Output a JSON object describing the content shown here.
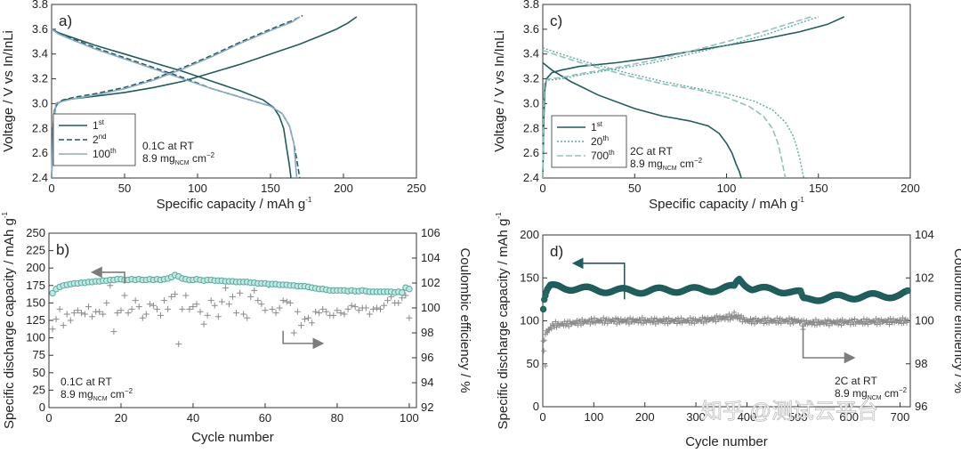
{
  "colors": {
    "dark": "#1f5c5c",
    "teal": "#5aa9a0",
    "mid": "#4b7fae",
    "light": "#8aa9c6",
    "grey": "#7c7c7c",
    "cyan": "#6fc9c0"
  },
  "chart_data": [
    {
      "id": "a",
      "type": "line",
      "panel_label": "a)",
      "xlabel": "Specific  capacity / mAh g",
      "xlabel_sup": "-1",
      "ylabel": "Voltage / V vs In/InLi",
      "xlim": [
        0,
        250
      ],
      "ylim": [
        2.4,
        3.8
      ],
      "xticks": [
        0,
        50,
        100,
        150,
        200,
        250
      ],
      "yticks": [
        2.4,
        2.6,
        2.8,
        3.0,
        3.2,
        3.4,
        3.6,
        3.8
      ],
      "legend": [
        "1",
        "2",
        "100"
      ],
      "legend_sup": [
        "st",
        "nd",
        "th"
      ],
      "annotation": [
        "0.1C at RT",
        "8.9 mg",
        "NCM",
        " cm",
        "−2"
      ],
      "series": [
        {
          "name": "1st charge",
          "style": "dark-solid",
          "x": [
            0,
            0.5,
            1,
            2,
            4,
            8,
            15,
            30,
            50,
            70,
            90,
            110,
            130,
            150,
            170,
            185,
            195,
            203,
            209
          ],
          "y": [
            2.4,
            2.6,
            2.8,
            2.95,
            3.0,
            3.03,
            3.04,
            3.06,
            3.09,
            3.13,
            3.18,
            3.25,
            3.32,
            3.4,
            3.48,
            3.55,
            3.6,
            3.65,
            3.7
          ]
        },
        {
          "name": "1st discharge",
          "style": "dark-solid",
          "x": [
            0,
            5,
            15,
            30,
            50,
            70,
            90,
            110,
            130,
            145,
            152,
            156,
            159,
            161,
            163,
            164
          ],
          "y": [
            3.6,
            3.57,
            3.53,
            3.47,
            3.4,
            3.33,
            3.26,
            3.18,
            3.1,
            3.03,
            2.97,
            2.9,
            2.8,
            2.65,
            2.5,
            2.4
          ]
        },
        {
          "name": "2nd charge",
          "style": "dark-dash",
          "x": [
            0,
            1,
            3,
            8,
            15,
            30,
            50,
            70,
            90,
            110,
            130,
            150,
            165,
            172
          ],
          "y": [
            2.4,
            2.8,
            3.0,
            3.03,
            3.05,
            3.08,
            3.13,
            3.2,
            3.29,
            3.39,
            3.5,
            3.6,
            3.67,
            3.71
          ]
        },
        {
          "name": "2nd discharge",
          "style": "dark-dash",
          "x": [
            0,
            5,
            15,
            30,
            50,
            70,
            90,
            110,
            130,
            150,
            158,
            163,
            166,
            168,
            170
          ],
          "y": [
            3.6,
            3.57,
            3.52,
            3.45,
            3.37,
            3.29,
            3.21,
            3.12,
            3.05,
            2.98,
            2.92,
            2.82,
            2.68,
            2.55,
            2.4
          ]
        },
        {
          "name": "100th charge",
          "style": "light-solid",
          "x": [
            0,
            1,
            3,
            8,
            15,
            30,
            50,
            70,
            90,
            110,
            130,
            150,
            165,
            170
          ],
          "y": [
            2.4,
            2.8,
            3.0,
            3.02,
            3.04,
            3.07,
            3.12,
            3.19,
            3.28,
            3.38,
            3.49,
            3.59,
            3.66,
            3.7
          ]
        },
        {
          "name": "100th discharge",
          "style": "light-solid",
          "x": [
            0,
            5,
            15,
            30,
            50,
            70,
            90,
            110,
            130,
            150,
            158,
            163,
            166,
            168
          ],
          "y": [
            3.6,
            3.56,
            3.51,
            3.44,
            3.36,
            3.28,
            3.2,
            3.12,
            3.05,
            2.98,
            2.92,
            2.82,
            2.68,
            2.4
          ]
        }
      ]
    },
    {
      "id": "b",
      "type": "scatter",
      "panel_label": "b)",
      "xlabel": "Cycle number",
      "ylabel": "Specific discharge capacity / mAh g",
      "ylabel_sup": "-1",
      "y2label": "Coulombic efficiency / %",
      "xlim": [
        0,
        102
      ],
      "ylim": [
        0,
        250
      ],
      "y2lim": [
        92,
        106
      ],
      "xticks": [
        0,
        20,
        40,
        60,
        80,
        100
      ],
      "yticks": [
        0,
        25,
        50,
        75,
        100,
        125,
        150,
        175,
        200,
        225,
        250
      ],
      "y2ticks": [
        92,
        94,
        96,
        98,
        100,
        102,
        104,
        106
      ],
      "annotation": [
        "0.1C at RT",
        "8.9 mg",
        "NCM",
        " cm",
        "−2"
      ],
      "capacity": {
        "x": [
          1,
          2,
          3,
          4,
          5,
          6,
          7,
          8,
          9,
          10,
          11,
          12,
          13,
          14,
          15,
          16,
          17,
          18,
          19,
          20,
          21,
          22,
          23,
          24,
          25,
          26,
          27,
          28,
          29,
          30,
          31,
          32,
          33,
          34,
          35,
          36,
          37,
          38,
          39,
          40,
          41,
          42,
          43,
          44,
          45,
          46,
          47,
          48,
          49,
          50,
          51,
          52,
          53,
          54,
          55,
          56,
          57,
          58,
          59,
          60,
          61,
          62,
          63,
          64,
          65,
          66,
          67,
          68,
          69,
          70,
          71,
          72,
          73,
          74,
          75,
          76,
          77,
          78,
          79,
          80,
          81,
          82,
          83,
          84,
          85,
          86,
          87,
          88,
          89,
          90,
          91,
          92,
          93,
          94,
          95,
          96,
          97,
          98,
          99,
          100
        ],
        "y": [
          164,
          170,
          173,
          175,
          176,
          177,
          178,
          178,
          179,
          179,
          180,
          180,
          181,
          181,
          182,
          182,
          183,
          183,
          184,
          184,
          183,
          183,
          184,
          183,
          184,
          183,
          183,
          184,
          183,
          184,
          183,
          184,
          185,
          187,
          190,
          188,
          185,
          184,
          183,
          183,
          184,
          183,
          182,
          183,
          183,
          182,
          182,
          182,
          181,
          181,
          181,
          180,
          180,
          180,
          180,
          179,
          179,
          178,
          178,
          178,
          177,
          177,
          177,
          176,
          176,
          176,
          175,
          175,
          174,
          174,
          174,
          173,
          172,
          171,
          170,
          170,
          169,
          168,
          168,
          168,
          168,
          168,
          167,
          168,
          167,
          167,
          168,
          167,
          166,
          166,
          166,
          166,
          166,
          166,
          166,
          165,
          166,
          165,
          172,
          170
        ]
      },
      "efficiency": {
        "x": [
          1,
          2,
          3,
          4,
          5,
          6,
          7,
          8,
          9,
          10,
          11,
          12,
          13,
          14,
          15,
          16,
          17,
          18,
          19,
          20,
          21,
          22,
          23,
          24,
          25,
          26,
          27,
          28,
          29,
          30,
          31,
          32,
          33,
          34,
          35,
          36,
          37,
          38,
          39,
          40,
          41,
          42,
          43,
          44,
          45,
          46,
          47,
          48,
          49,
          50,
          51,
          52,
          53,
          54,
          55,
          56,
          57,
          58,
          59,
          60,
          61,
          62,
          63,
          64,
          65,
          66,
          67,
          68,
          69,
          70,
          71,
          72,
          73,
          74,
          75,
          76,
          77,
          78,
          79,
          80,
          81,
          82,
          83,
          84,
          85,
          86,
          87,
          88,
          89,
          90,
          91,
          92,
          93,
          94,
          95,
          96,
          97,
          98,
          99,
          100
        ],
        "y": [
          98.3,
          99.1,
          99.9,
          98.6,
          99.5,
          99.0,
          99.6,
          99.8,
          99.6,
          99.5,
          100.1,
          99.3,
          99.7,
          99.7,
          99.5,
          100.4,
          101.8,
          98.1,
          99.6,
          99.8,
          101.0,
          99.6,
          99.9,
          100.6,
          100.1,
          99.2,
          99.5,
          100.3,
          100.2,
          99.9,
          99.4,
          100.6,
          99.9,
          100.9,
          101.1,
          97.1,
          99.9,
          101.0,
          99.9,
          100.1,
          100.3,
          99.7,
          98.7,
          99.4,
          100.6,
          100.2,
          99.3,
          100.5,
          101.6,
          100.3,
          100.9,
          99.6,
          101.2,
          99.5,
          99.2,
          100.9,
          101.4,
          100.6,
          100.3,
          99.8,
          101.8,
          99.9,
          99.6,
          100.0,
          100.6,
          100.5,
          100.4,
          98.0,
          99.7,
          98.6,
          99.1,
          99.2,
          98.8,
          99.7,
          99.6,
          99.9,
          99.7,
          99.4,
          99.4,
          99.8,
          99.6,
          99.5,
          99.9,
          100.2,
          100.1,
          99.8,
          100.0,
          100.0,
          99.5,
          99.9,
          100.0,
          99.9,
          100.2,
          100.6,
          100.9,
          100.4,
          100.4,
          100.8,
          101.0,
          99.2
        ]
      }
    },
    {
      "id": "c",
      "type": "line",
      "panel_label": "c)",
      "xlabel": "Specific  capacity / mAh g",
      "xlabel_sup": "-1",
      "ylabel": "Voltage / V vs In/InLi",
      "xlim": [
        0,
        200
      ],
      "ylim": [
        2.4,
        3.8
      ],
      "xticks": [
        0,
        50,
        100,
        150,
        200
      ],
      "yticks": [
        2.4,
        2.6,
        2.8,
        3.0,
        3.2,
        3.4,
        3.6,
        3.8
      ],
      "legend": [
        "1",
        "20",
        "700"
      ],
      "legend_sup": [
        "st",
        "th",
        "th"
      ],
      "annotation": [
        "2C at RT",
        "8.9 mg",
        "NCM",
        " cm",
        "−2"
      ],
      "series": [
        {
          "name": "1st charge",
          "style": "dark-solid",
          "x": [
            0,
            0.5,
            1,
            2,
            5,
            10,
            20,
            40,
            60,
            80,
            100,
            120,
            140,
            155,
            164
          ],
          "y": [
            2.4,
            2.8,
            3.1,
            3.2,
            3.25,
            3.27,
            3.3,
            3.33,
            3.37,
            3.42,
            3.47,
            3.52,
            3.58,
            3.64,
            3.7
          ]
        },
        {
          "name": "1st discharge",
          "style": "dark-solid",
          "x": [
            0,
            5,
            15,
            30,
            50,
            65,
            80,
            90,
            96,
            100,
            103,
            105,
            107,
            108
          ],
          "y": [
            3.33,
            3.27,
            3.18,
            3.07,
            2.96,
            2.9,
            2.86,
            2.82,
            2.76,
            2.68,
            2.6,
            2.52,
            2.45,
            2.4
          ]
        },
        {
          "name": "20th charge",
          "style": "teal-dot",
          "x": [
            0,
            0.5,
            1,
            3,
            10,
            20,
            40,
            60,
            80,
            100,
            120,
            140,
            150
          ],
          "y": [
            2.4,
            3.0,
            3.17,
            3.19,
            3.2,
            3.23,
            3.28,
            3.33,
            3.4,
            3.47,
            3.55,
            3.65,
            3.7
          ]
        },
        {
          "name": "20th discharge",
          "style": "teal-dot",
          "x": [
            0,
            10,
            25,
            45,
            65,
            85,
            100,
            115,
            125,
            132,
            136,
            138,
            140,
            141,
            142
          ],
          "y": [
            3.45,
            3.4,
            3.33,
            3.25,
            3.18,
            3.12,
            3.08,
            3.02,
            2.95,
            2.85,
            2.75,
            2.66,
            2.55,
            2.47,
            2.4
          ]
        },
        {
          "name": "700th charge",
          "style": "light-dash",
          "x": [
            0,
            0.5,
            1,
            3,
            10,
            20,
            40,
            60,
            80,
            100,
            120,
            135,
            146
          ],
          "y": [
            2.4,
            3.0,
            3.18,
            3.2,
            3.21,
            3.24,
            3.29,
            3.35,
            3.42,
            3.5,
            3.58,
            3.65,
            3.7
          ]
        },
        {
          "name": "700th discharge",
          "style": "light-dash",
          "x": [
            0,
            10,
            25,
            45,
            65,
            85,
            100,
            112,
            120,
            125,
            128,
            130,
            132
          ],
          "y": [
            3.43,
            3.38,
            3.31,
            3.23,
            3.16,
            3.11,
            3.05,
            2.98,
            2.9,
            2.8,
            2.68,
            2.55,
            2.4
          ]
        }
      ]
    },
    {
      "id": "d",
      "type": "scatter",
      "panel_label": "d)",
      "xlabel": "Cycle number",
      "ylabel": "Specific discharge capacity / mAh g",
      "ylabel_sup": "-1",
      "y2label": "Coulombic efficiency / %",
      "xlim": [
        0,
        720
      ],
      "ylim": [
        0,
        200
      ],
      "y2lim": [
        96,
        104
      ],
      "xticks": [
        0,
        100,
        200,
        300,
        400,
        500,
        600,
        700
      ],
      "yticks": [
        0,
        50,
        100,
        150,
        200
      ],
      "y2ticks": [
        96,
        98,
        100,
        102,
        104
      ],
      "annotation": [
        "2C at RT",
        "8.9 mg",
        "NCM",
        " cm",
        "−2"
      ],
      "capacity": {
        "segments": [
          [
            0,
            108
          ],
          [
            3,
            124
          ],
          [
            8,
            134
          ],
          [
            15,
            139
          ],
          [
            30,
            140
          ],
          [
            60,
            138
          ],
          [
            100,
            136
          ],
          [
            150,
            135
          ],
          [
            200,
            135
          ],
          [
            250,
            136
          ],
          [
            300,
            136
          ],
          [
            350,
            137
          ],
          [
            375,
            139
          ],
          [
            380,
            145
          ],
          [
            385,
            149
          ],
          [
            395,
            144
          ],
          [
            410,
            138
          ],
          [
            440,
            136
          ],
          [
            480,
            135
          ],
          [
            505,
            132
          ],
          [
            510,
            124
          ],
          [
            530,
            126
          ],
          [
            560,
            127
          ],
          [
            600,
            128
          ],
          [
            650,
            129
          ],
          [
            700,
            130
          ],
          [
            720,
            133
          ]
        ],
        "ripple": 3
      },
      "efficiency": {
        "segments": [
          [
            0,
            98.8
          ],
          [
            5,
            99.4
          ],
          [
            20,
            99.8
          ],
          [
            100,
            100.0
          ],
          [
            300,
            100.0
          ],
          [
            380,
            100.2
          ],
          [
            400,
            100.0
          ],
          [
            500,
            100.0
          ],
          [
            510,
            99.9
          ],
          [
            720,
            100.0
          ]
        ],
        "spread": 0.15,
        "outliers": [
          [
            5,
            97.9
          ],
          [
            2,
            98.6
          ],
          [
            375,
            100.4
          ],
          [
            510,
            99.6
          ]
        ]
      }
    }
  ],
  "watermark": "知乎 @测试云平台"
}
